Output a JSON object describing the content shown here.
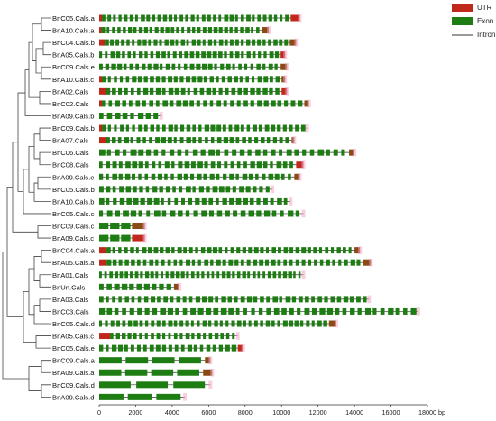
{
  "legend": {
    "items": [
      {
        "label": "UTR",
        "color": "#c0281c",
        "type": "box"
      },
      {
        "label": "Exon",
        "color": "#1e7d12",
        "type": "box"
      },
      {
        "label": "Intron",
        "color": "#333333",
        "type": "line"
      }
    ]
  },
  "axis": {
    "unit": "bp",
    "ticks": [
      0,
      2000,
      4000,
      6000,
      8000,
      10000,
      12000,
      14000,
      16000,
      18000
    ],
    "tick_labels": [
      "0",
      "2000",
      "4000",
      "6000",
      "8000",
      "10000",
      "12000",
      "14000",
      "16000",
      "18000"
    ],
    "min": 0,
    "max": 18000
  },
  "colors": {
    "utr": "#c0281c",
    "utr_brown": "#8a4a14",
    "exon": "#1e7d12",
    "highlight": "#f4a6c8",
    "intron": "#333333",
    "tree": "#444444"
  },
  "genes": [
    {
      "name": "BnC05.Cals.a",
      "length": 11000,
      "utr5": 150,
      "utr3": 500,
      "exons": 34
    },
    {
      "name": "BnA10.Cals.a",
      "length": 9300,
      "utr5": 120,
      "utr3": 400,
      "exons": 30
    },
    {
      "name": "BnC04.Cals.b",
      "length": 10800,
      "utr5": 300,
      "utr3": 350,
      "exons": 34
    },
    {
      "name": "BnA05.Cals.b",
      "length": 10200,
      "utr5": 0,
      "utr3": 250,
      "exons": 32
    },
    {
      "name": "BnC09.Cals.e",
      "length": 10300,
      "utr5": 0,
      "utr3": 350,
      "exons": 30
    },
    {
      "name": "BnA10.Cals.c",
      "length": 10200,
      "utr5": 150,
      "utr3": 200,
      "exons": 30
    },
    {
      "name": "BnA02.Cals",
      "length": 10300,
      "utr5": 350,
      "utr3": 300,
      "exons": 28
    },
    {
      "name": "BnC02.Cals",
      "length": 11500,
      "utr5": 150,
      "utr3": 250,
      "exons": 30
    },
    {
      "name": "BnA09.Cals.b",
      "length": 3400,
      "utr5": 0,
      "utr3": 0,
      "exons": 8
    },
    {
      "name": "BnC09.Cals.b",
      "length": 11400,
      "utr5": 150,
      "utr3": 0,
      "exons": 34
    },
    {
      "name": "BnA07.Cals",
      "length": 10700,
      "utr5": 350,
      "utr3": 150,
      "exons": 30
    },
    {
      "name": "BnC06.Cals",
      "length": 14000,
      "utr5": 0,
      "utr3": 300,
      "exons": 32
    },
    {
      "name": "BnC08.Cals",
      "length": 11200,
      "utr5": 0,
      "utr3": 400,
      "exons": 30
    },
    {
      "name": "BnA09.Cals.e",
      "length": 11000,
      "utr5": 0,
      "utr3": 300,
      "exons": 30
    },
    {
      "name": "BnC05.Cals.b",
      "length": 9500,
      "utr5": 0,
      "utr3": 0,
      "exons": 26
    },
    {
      "name": "BnA10.Cals.b",
      "length": 10500,
      "utr5": 0,
      "utr3": 0,
      "exons": 28
    },
    {
      "name": "BnC05.Cals.c",
      "length": 11200,
      "utr5": 0,
      "utr3": 0,
      "exons": 26
    },
    {
      "name": "BnC09.Cals.c",
      "length": 2500,
      "utr5": 0,
      "utr3": 700,
      "exons": 3
    },
    {
      "name": "BnA09.Cals.c",
      "length": 2500,
      "utr5": 0,
      "utr3": 700,
      "exons": 3
    },
    {
      "name": "BnC04.Cals.a",
      "length": 14300,
      "utr5": 400,
      "utr3": 300,
      "exons": 42
    },
    {
      "name": "BnA05.Cals.a",
      "length": 14900,
      "utr5": 400,
      "utr3": 450,
      "exons": 42
    },
    {
      "name": "BnA01.Cals",
      "length": 11200,
      "utr5": 0,
      "utr3": 0,
      "exons": 40
    },
    {
      "name": "BnUn.Cals",
      "length": 4400,
      "utr5": 0,
      "utr3": 300,
      "exons": 10
    },
    {
      "name": "BnA03.Cals",
      "length": 14800,
      "utr5": 0,
      "utr3": 0,
      "exons": 42
    },
    {
      "name": "BnC03.Cals",
      "length": 17500,
      "utr5": 0,
      "utr3": 0,
      "exons": 42
    },
    {
      "name": "BnC05.Cals.d",
      "length": 13000,
      "utr5": 0,
      "utr3": 400,
      "exons": 40
    },
    {
      "name": "BnA05.Cals.c",
      "length": 7600,
      "utr5": 600,
      "utr3": 0,
      "exons": 22
    },
    {
      "name": "BnC05.Cals.e",
      "length": 7900,
      "utr5": 0,
      "utr3": 300,
      "exons": 22
    },
    {
      "name": "BnC09.Cals.a",
      "length": 6100,
      "utr5": 0,
      "utr3": 300,
      "exons": 4
    },
    {
      "name": "BnA09.Cals.a",
      "length": 6200,
      "utr5": 0,
      "utr3": 500,
      "exons": 4
    },
    {
      "name": "BnC09.Cals.d",
      "length": 6100,
      "utr5": 0,
      "utr3": 0,
      "exons": 3
    },
    {
      "name": "BnA09.Cals.d",
      "length": 4700,
      "utr5": 0,
      "utr3": 0,
      "exons": 3
    }
  ]
}
